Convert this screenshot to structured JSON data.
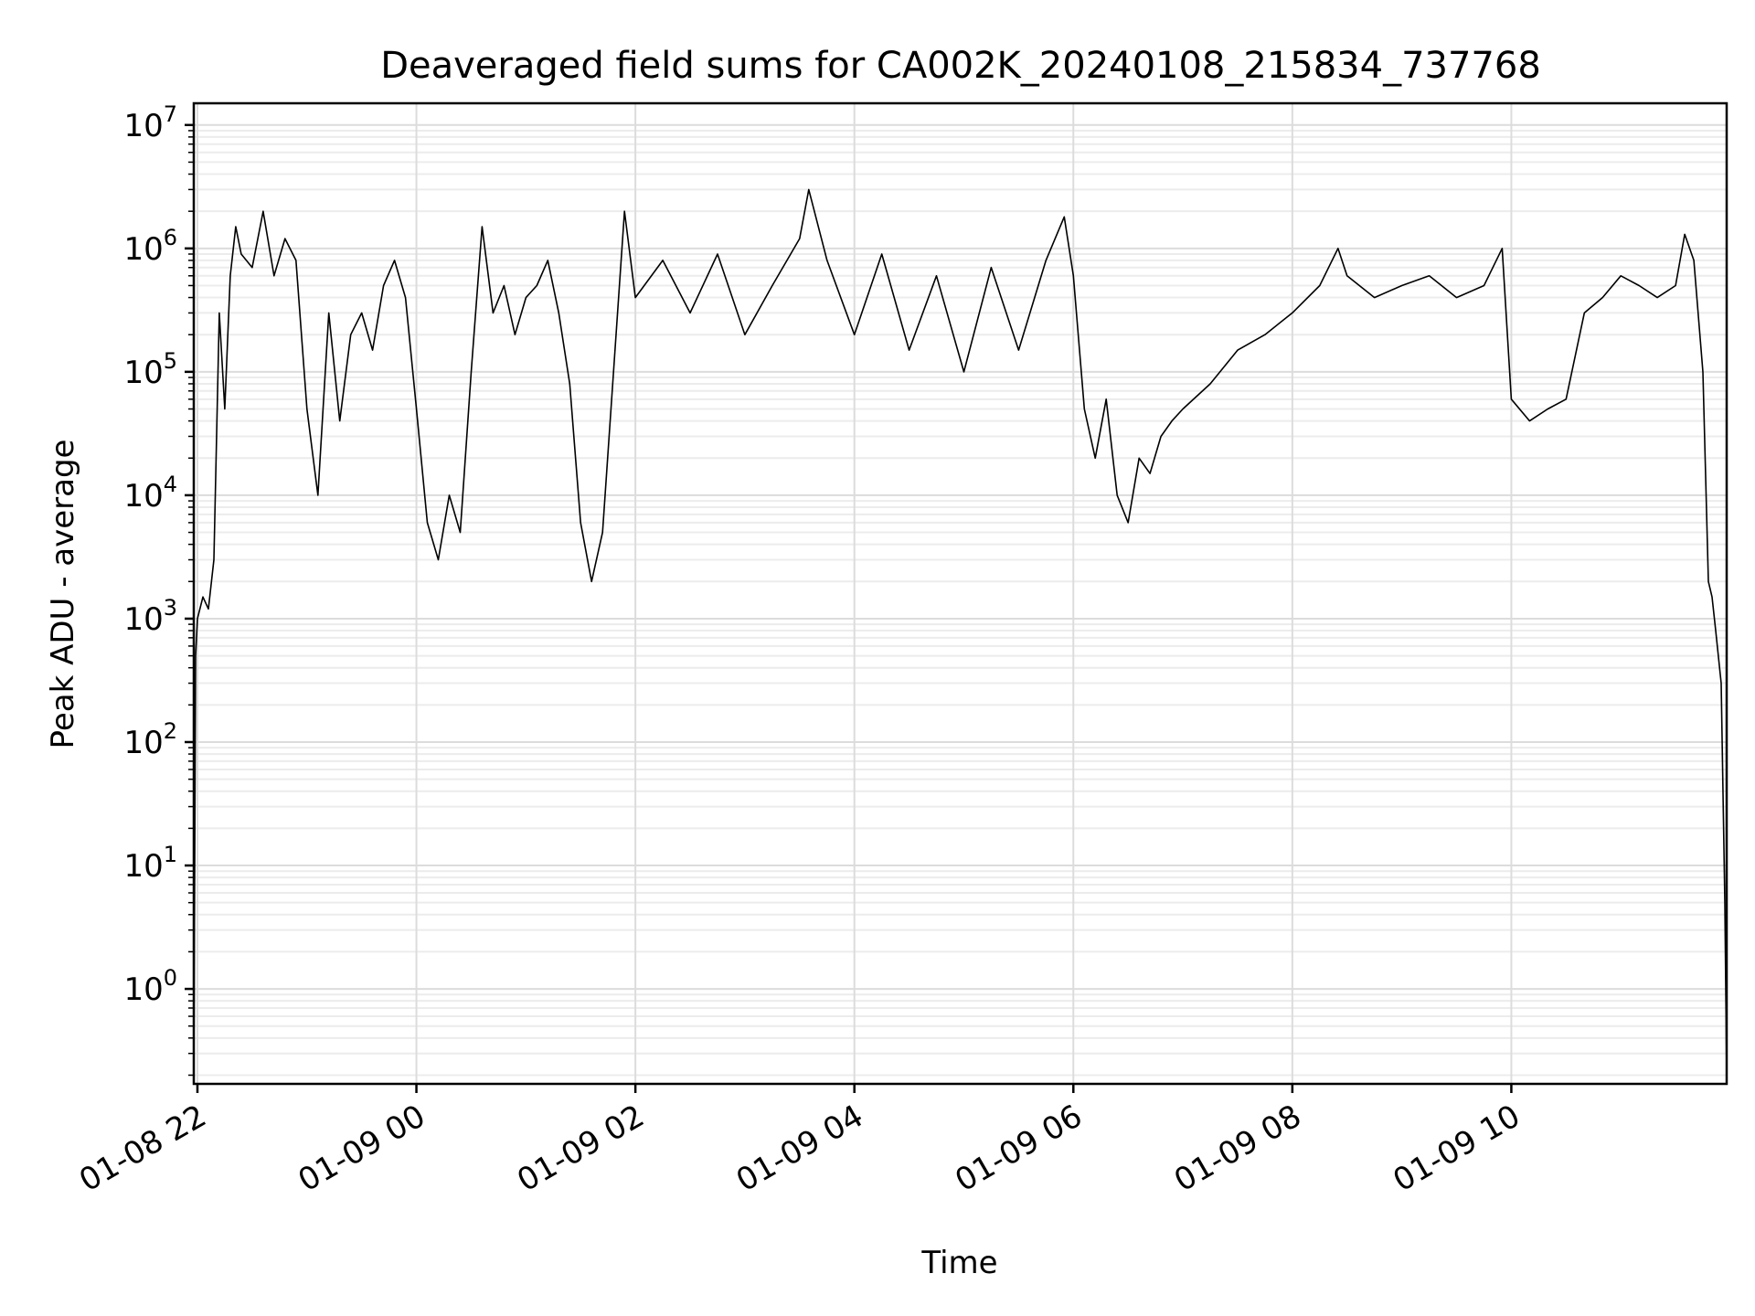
{
  "chart_data": {
    "type": "line",
    "title": "Deaveraged field sums for CA002K_20240108_215834_737768",
    "xlabel": "Time",
    "ylabel": "Peak ADU - average",
    "yscale": "log",
    "ylim": [
      0.17,
      15000000
    ],
    "xlim": [
      "2024-01-08 21:58",
      "2024-01-09 11:58"
    ],
    "grid": true,
    "x_ticks": [
      "01-08 22",
      "01-09 00",
      "01-09 02",
      "01-09 04",
      "01-09 06",
      "01-09 08",
      "01-09 10"
    ],
    "y_ticks": [
      {
        "base": "10",
        "exp": "0"
      },
      {
        "base": "10",
        "exp": "1"
      },
      {
        "base": "10",
        "exp": "2"
      },
      {
        "base": "10",
        "exp": "3"
      },
      {
        "base": "10",
        "exp": "4"
      },
      {
        "base": "10",
        "exp": "5"
      },
      {
        "base": "10",
        "exp": "6"
      },
      {
        "base": "10",
        "exp": "7"
      }
    ],
    "line_color": "#000000",
    "series": [
      {
        "x": [
          "2024-01-08 21:58",
          "2024-01-08 21:59",
          "2024-01-08 22:00",
          "2024-01-08 22:03",
          "2024-01-08 22:06",
          "2024-01-08 22:09",
          "2024-01-08 22:12",
          "2024-01-08 22:15",
          "2024-01-08 22:18",
          "2024-01-08 22:21",
          "2024-01-08 22:24",
          "2024-01-08 22:30",
          "2024-01-08 22:36",
          "2024-01-08 22:42",
          "2024-01-08 22:48",
          "2024-01-08 22:54",
          "2024-01-08 23:00",
          "2024-01-08 23:06",
          "2024-01-08 23:12",
          "2024-01-08 23:18",
          "2024-01-08 23:24",
          "2024-01-08 23:30",
          "2024-01-08 23:36",
          "2024-01-08 23:42",
          "2024-01-08 23:48",
          "2024-01-08 23:54",
          "2024-01-09 00:00",
          "2024-01-09 00:06",
          "2024-01-09 00:12",
          "2024-01-09 00:18",
          "2024-01-09 00:24",
          "2024-01-09 00:30",
          "2024-01-09 00:36",
          "2024-01-09 00:42",
          "2024-01-09 00:48",
          "2024-01-09 00:54",
          "2024-01-09 01:00",
          "2024-01-09 01:06",
          "2024-01-09 01:12",
          "2024-01-09 01:18",
          "2024-01-09 01:24",
          "2024-01-09 01:30",
          "2024-01-09 01:36",
          "2024-01-09 01:42",
          "2024-01-09 01:48",
          "2024-01-09 01:54",
          "2024-01-09 02:00",
          "2024-01-09 02:15",
          "2024-01-09 02:30",
          "2024-01-09 02:45",
          "2024-01-09 03:00",
          "2024-01-09 03:15",
          "2024-01-09 03:30",
          "2024-01-09 03:35",
          "2024-01-09 03:45",
          "2024-01-09 04:00",
          "2024-01-09 04:15",
          "2024-01-09 04:30",
          "2024-01-09 04:45",
          "2024-01-09 05:00",
          "2024-01-09 05:15",
          "2024-01-09 05:30",
          "2024-01-09 05:45",
          "2024-01-09 05:55",
          "2024-01-09 06:00",
          "2024-01-09 06:06",
          "2024-01-09 06:12",
          "2024-01-09 06:18",
          "2024-01-09 06:24",
          "2024-01-09 06:30",
          "2024-01-09 06:36",
          "2024-01-09 06:42",
          "2024-01-09 06:48",
          "2024-01-09 06:54",
          "2024-01-09 07:00",
          "2024-01-09 07:15",
          "2024-01-09 07:30",
          "2024-01-09 07:45",
          "2024-01-09 08:00",
          "2024-01-09 08:15",
          "2024-01-09 08:25",
          "2024-01-09 08:30",
          "2024-01-09 08:45",
          "2024-01-09 09:00",
          "2024-01-09 09:15",
          "2024-01-09 09:30",
          "2024-01-09 09:45",
          "2024-01-09 09:55",
          "2024-01-09 10:00",
          "2024-01-09 10:10",
          "2024-01-09 10:20",
          "2024-01-09 10:30",
          "2024-01-09 10:40",
          "2024-01-09 10:50",
          "2024-01-09 11:00",
          "2024-01-09 11:10",
          "2024-01-09 11:20",
          "2024-01-09 11:30",
          "2024-01-09 11:35",
          "2024-01-09 11:40",
          "2024-01-09 11:45",
          "2024-01-09 11:48",
          "2024-01-09 11:50",
          "2024-01-09 11:52",
          "2024-01-09 11:55",
          "2024-01-09 11:57",
          "2024-01-09 11:58"
        ],
        "y": [
          0.2,
          500,
          1000,
          1500,
          1200,
          3000,
          300000,
          50000,
          600000,
          1500000,
          900000,
          700000,
          2000000,
          600000,
          1200000,
          800000,
          50000,
          10000,
          300000,
          40000,
          200000,
          300000,
          150000,
          500000,
          800000,
          400000,
          50000,
          6000,
          3000,
          10000,
          5000,
          100000,
          1500000,
          300000,
          500000,
          200000,
          400000,
          500000,
          800000,
          300000,
          80000,
          6000,
          2000,
          5000,
          100000,
          2000000,
          400000,
          800000,
          300000,
          900000,
          200000,
          500000,
          1200000,
          3000000,
          800000,
          200000,
          900000,
          150000,
          600000,
          100000,
          700000,
          150000,
          800000,
          1800000,
          600000,
          50000,
          20000,
          60000,
          10000,
          6000,
          20000,
          15000,
          30000,
          40000,
          50000,
          80000,
          150000,
          200000,
          300000,
          500000,
          1000000,
          600000,
          400000,
          500000,
          600000,
          400000,
          500000,
          1000000,
          60000,
          40000,
          50000,
          60000,
          300000,
          400000,
          600000,
          500000,
          400000,
          500000,
          1300000,
          800000,
          100000,
          2000,
          1500,
          800,
          300,
          5,
          0.2
        ]
      }
    ]
  }
}
